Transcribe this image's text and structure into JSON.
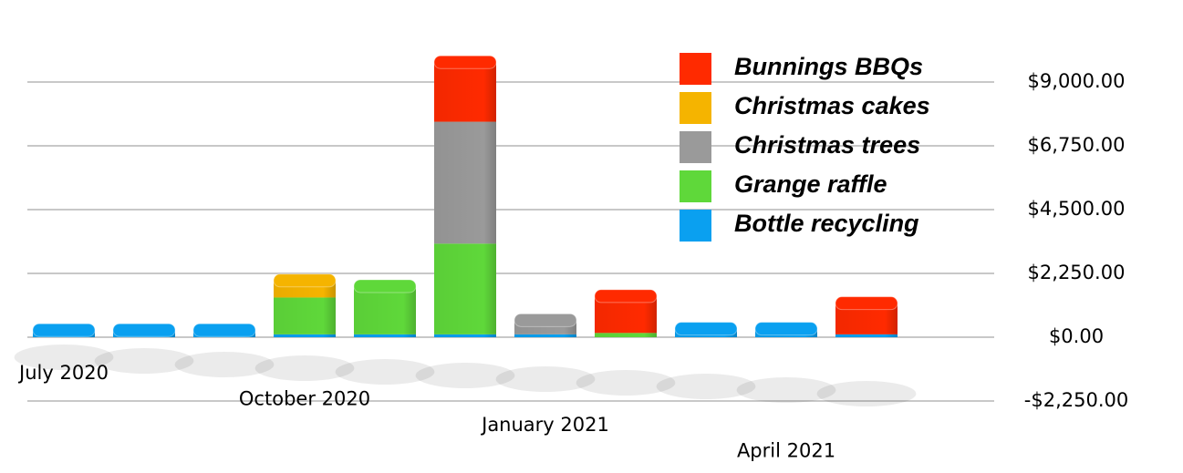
{
  "chart_data": {
    "type": "bar",
    "stacked": true,
    "categories": [
      "July 2020",
      null,
      null,
      "October 2020",
      null,
      null,
      "January 2021",
      null,
      null,
      "April 2021",
      null
    ],
    "series": [
      {
        "name": "Bunnings BBQs",
        "color": "#ff2a00",
        "values": [
          0,
          0,
          0,
          0,
          0,
          2100,
          0,
          1300,
          0,
          0,
          1100
        ]
      },
      {
        "name": "Christmas cakes",
        "color": "#f5b400",
        "values": [
          0,
          0,
          0,
          600,
          0,
          0,
          0,
          0,
          0,
          0,
          0
        ]
      },
      {
        "name": "Christmas trees",
        "color": "#9a9a9a",
        "values": [
          0,
          0,
          0,
          0,
          0,
          4300,
          500,
          0,
          0,
          0,
          0
        ]
      },
      {
        "name": "Grange raffle",
        "color": "#5fd83a",
        "values": [
          0,
          0,
          0,
          1300,
          1700,
          3200,
          0,
          150,
          0,
          0,
          0
        ]
      },
      {
        "name": "Bottle recycling",
        "color": "#0aa0f0",
        "values": [
          250,
          250,
          250,
          100,
          100,
          100,
          100,
          0,
          300,
          300,
          100
        ]
      }
    ],
    "ylim": [
      -2250,
      11250
    ],
    "yticks": [
      {
        "value": -2250,
        "label": "-$2,250.00"
      },
      {
        "value": 0,
        "label": "$0.00"
      },
      {
        "value": 2250,
        "label": "$2,250.00"
      },
      {
        "value": 4500,
        "label": "$4,500.00"
      },
      {
        "value": 6750,
        "label": "$6,750.00"
      },
      {
        "value": 9000,
        "label": "$9,000.00"
      }
    ],
    "grid": true
  }
}
